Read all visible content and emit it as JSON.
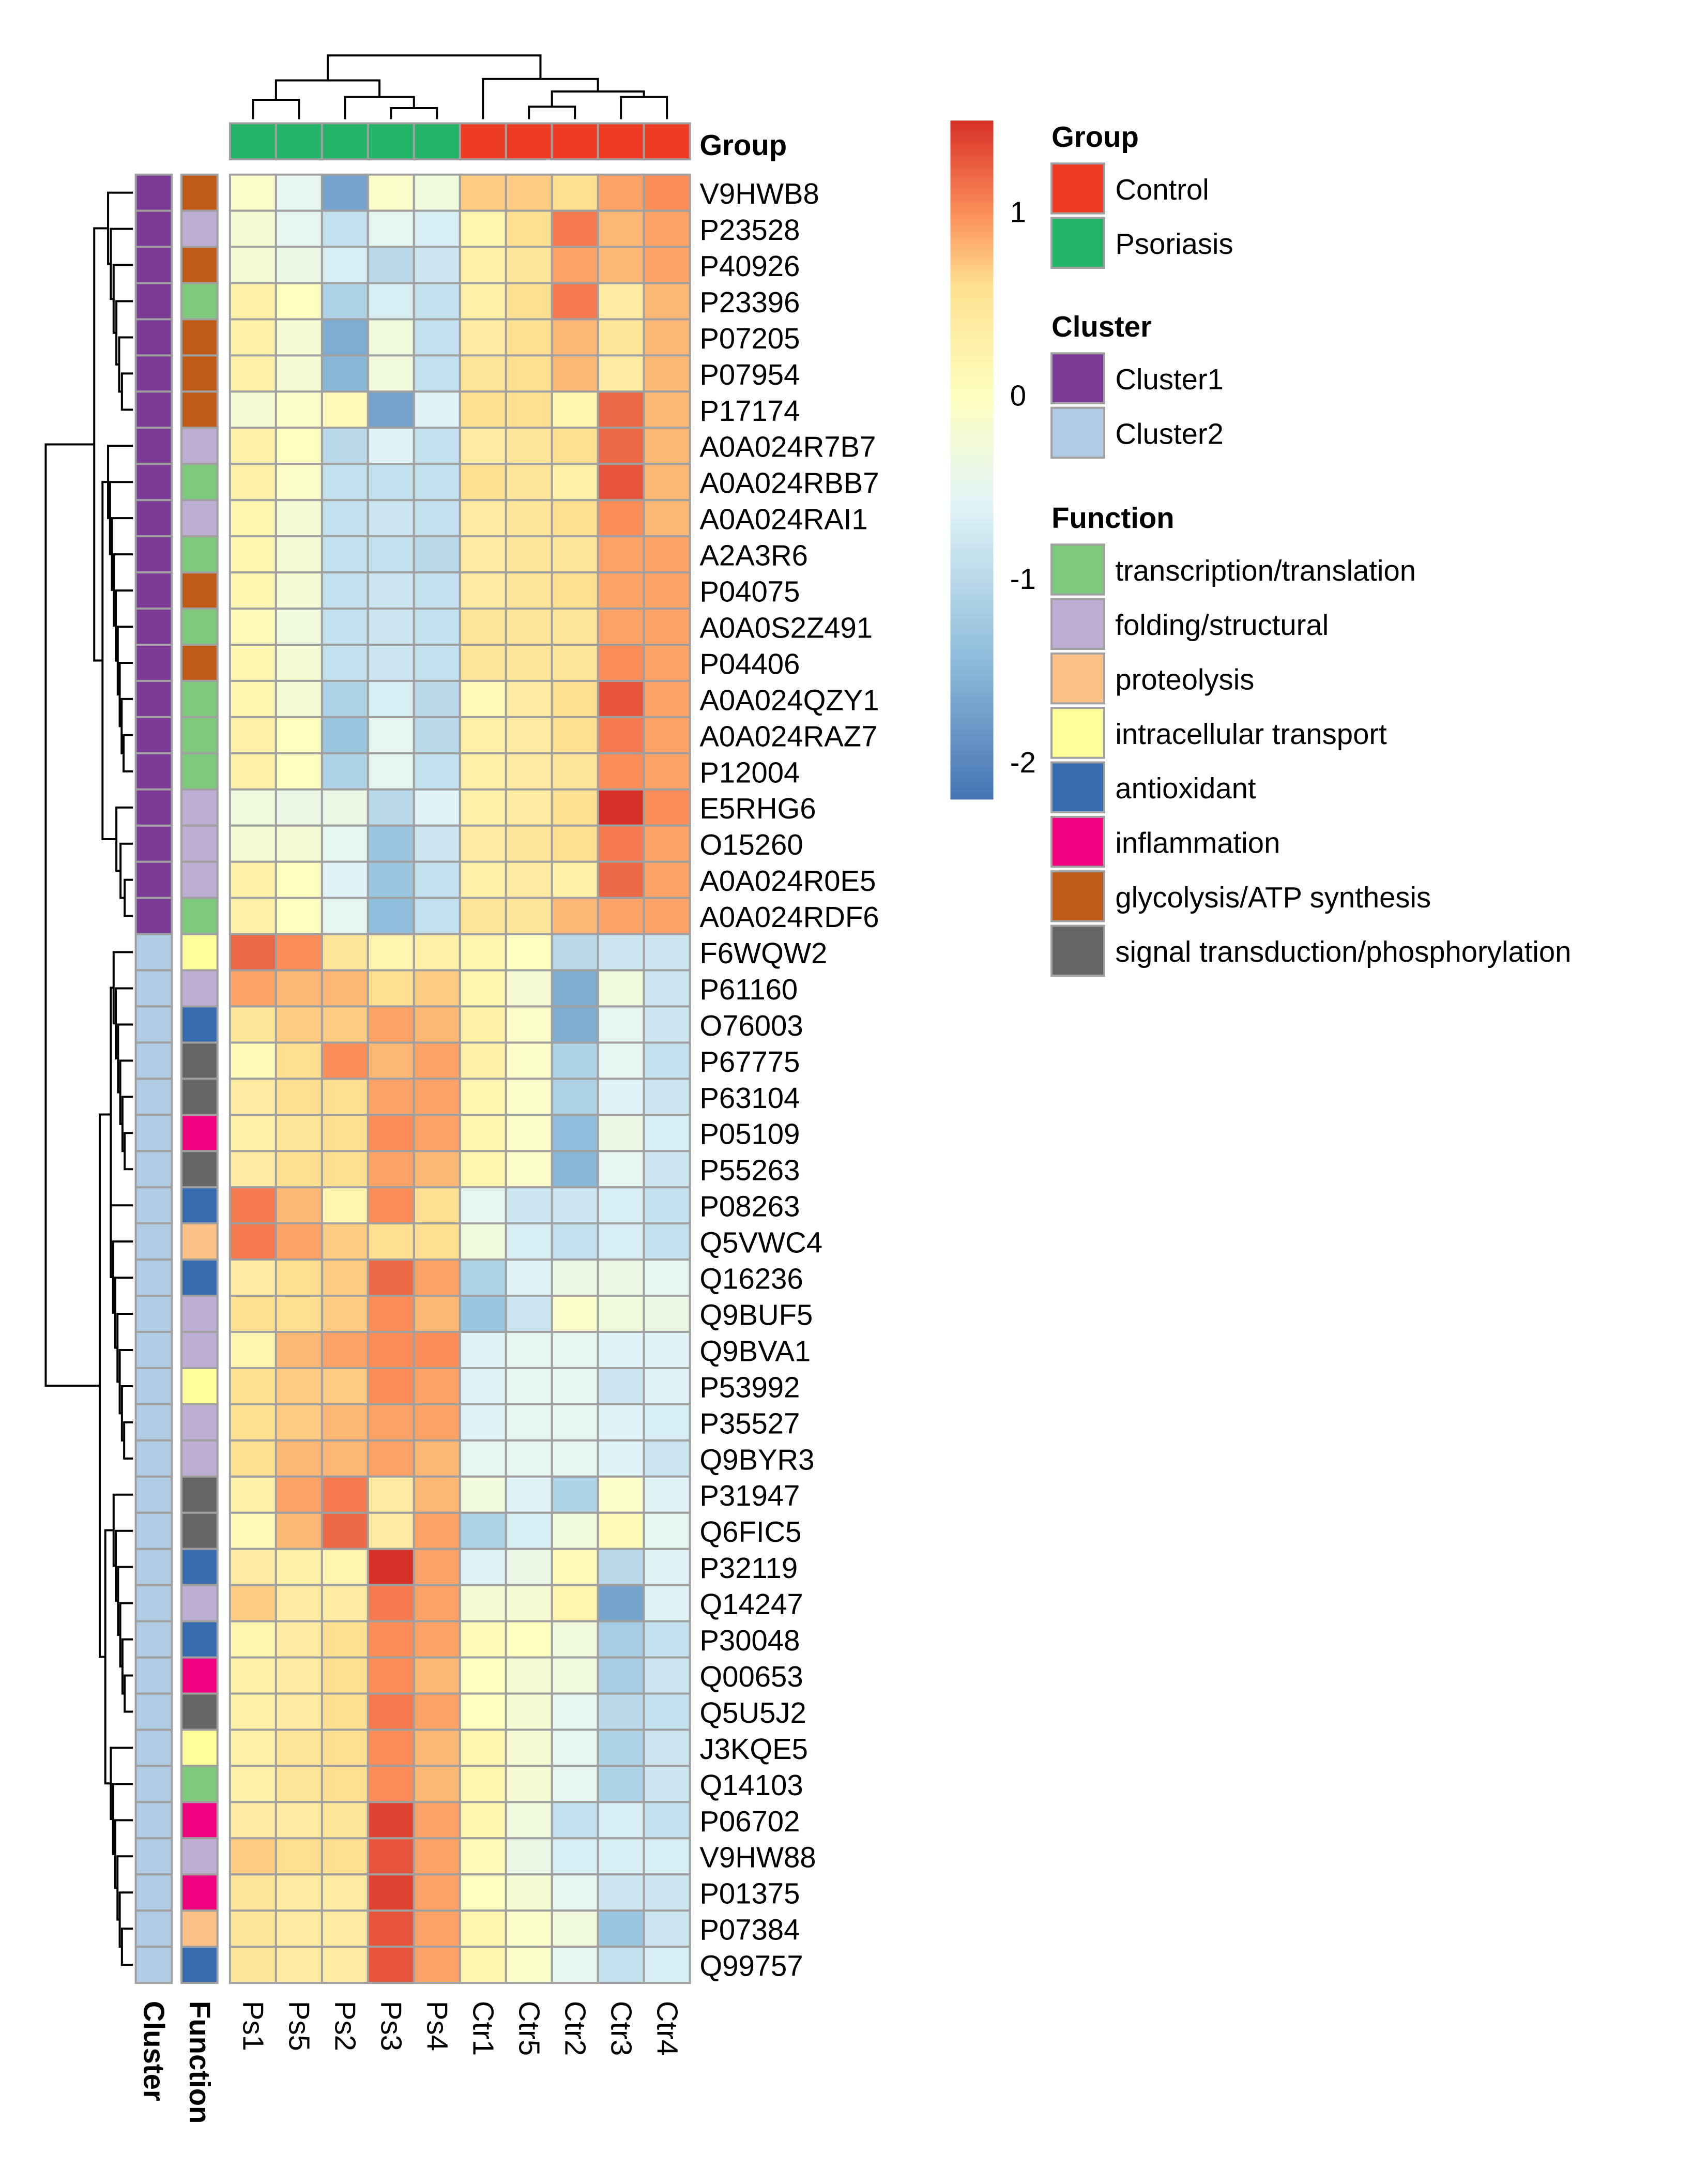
{
  "chart_data": {
    "type": "heatmap",
    "title": "",
    "columns": [
      "Ps1",
      "Ps5",
      "Ps2",
      "Ps3",
      "Ps4",
      "Ctr1",
      "Ctr5",
      "Ctr2",
      "Ctr3",
      "Ctr4"
    ],
    "column_group": [
      "Psoriasis",
      "Psoriasis",
      "Psoriasis",
      "Psoriasis",
      "Psoriasis",
      "Control",
      "Control",
      "Control",
      "Control",
      "Control"
    ],
    "rows": [
      "V9HWB8",
      "P23528",
      "P40926",
      "P23396",
      "P07205",
      "P07954",
      "P17174",
      "A0A024R7B7",
      "A0A024RBB7",
      "A0A024RAI1",
      "A2A3R6",
      "P04075",
      "A0A0S2Z491",
      "P04406",
      "A0A024QZY1",
      "A0A024RAZ7",
      "P12004",
      "E5RHG6",
      "O15260",
      "A0A024R0E5",
      "A0A024RDF6",
      "F6WQW2",
      "P61160",
      "O76003",
      "P67775",
      "P63104",
      "P05109",
      "P55263",
      "P08263",
      "Q5VWC4",
      "Q16236",
      "Q9BUF5",
      "Q9BVA1",
      "P53992",
      "P35527",
      "Q9BYR3",
      "P31947",
      "Q6FIC5",
      "P32119",
      "Q14247",
      "P30048",
      "Q00653",
      "Q5U5J2",
      "J3KQE5",
      "Q14103",
      "P06702",
      "V9HW88",
      "P01375",
      "P07384",
      "Q99757"
    ],
    "row_cluster": [
      "Cluster1",
      "Cluster1",
      "Cluster1",
      "Cluster1",
      "Cluster1",
      "Cluster1",
      "Cluster1",
      "Cluster1",
      "Cluster1",
      "Cluster1",
      "Cluster1",
      "Cluster1",
      "Cluster1",
      "Cluster1",
      "Cluster1",
      "Cluster1",
      "Cluster1",
      "Cluster1",
      "Cluster1",
      "Cluster1",
      "Cluster1",
      "Cluster2",
      "Cluster2",
      "Cluster2",
      "Cluster2",
      "Cluster2",
      "Cluster2",
      "Cluster2",
      "Cluster2",
      "Cluster2",
      "Cluster2",
      "Cluster2",
      "Cluster2",
      "Cluster2",
      "Cluster2",
      "Cluster2",
      "Cluster2",
      "Cluster2",
      "Cluster2",
      "Cluster2",
      "Cluster2",
      "Cluster2",
      "Cluster2",
      "Cluster2",
      "Cluster2",
      "Cluster2",
      "Cluster2",
      "Cluster2",
      "Cluster2",
      "Cluster2"
    ],
    "row_function": [
      "glycolysis/ATP synthesis",
      "folding/structural",
      "glycolysis/ATP synthesis",
      "transcription/translation",
      "glycolysis/ATP synthesis",
      "glycolysis/ATP synthesis",
      "glycolysis/ATP synthesis",
      "folding/structural",
      "transcription/translation",
      "folding/structural",
      "transcription/translation",
      "glycolysis/ATP synthesis",
      "transcription/translation",
      "glycolysis/ATP synthesis",
      "transcription/translation",
      "transcription/translation",
      "transcription/translation",
      "folding/structural",
      "folding/structural",
      "folding/structural",
      "transcription/translation",
      "intracellular transport",
      "folding/structural",
      "antioxidant",
      "signal transduction/phosphorylation",
      "signal transduction/phosphorylation",
      "inflammation",
      "signal transduction/phosphorylation",
      "antioxidant",
      "proteolysis",
      "antioxidant",
      "folding/structural",
      "folding/structural",
      "intracellular transport",
      "folding/structural",
      "folding/structural",
      "signal transduction/phosphorylation",
      "signal transduction/phosphorylation",
      "antioxidant",
      "folding/structural",
      "antioxidant",
      "inflammation",
      "signal transduction/phosphorylation",
      "intracellular transport",
      "transcription/translation",
      "inflammation",
      "folding/structural",
      "inflammation",
      "proteolysis",
      "antioxidant"
    ],
    "values": [
      [
        -0.1,
        -0.5,
        -1.7,
        -0.1,
        -0.3,
        0.7,
        0.7,
        0.6,
        0.9,
        1.0
      ],
      [
        -0.2,
        -0.5,
        -0.9,
        -0.5,
        -0.7,
        0.2,
        0.6,
        1.1,
        0.8,
        0.9
      ],
      [
        -0.2,
        -0.4,
        -0.7,
        -1.0,
        -0.8,
        0.3,
        0.5,
        0.9,
        0.8,
        0.9
      ],
      [
        0.3,
        0.0,
        -1.1,
        -0.7,
        -0.9,
        0.3,
        0.6,
        1.1,
        0.4,
        0.8
      ],
      [
        0.3,
        -0.2,
        -1.6,
        -0.3,
        -0.9,
        0.4,
        0.6,
        0.8,
        0.5,
        0.8
      ],
      [
        0.3,
        -0.2,
        -1.5,
        -0.3,
        -0.9,
        0.5,
        0.6,
        0.8,
        0.4,
        0.8
      ],
      [
        -0.2,
        -0.1,
        0.1,
        -1.7,
        -0.6,
        0.6,
        0.6,
        0.2,
        1.2,
        0.8
      ],
      [
        0.3,
        0.0,
        -1.0,
        -0.6,
        -0.9,
        0.4,
        0.5,
        0.6,
        1.2,
        0.8
      ],
      [
        0.3,
        -0.1,
        -0.9,
        -0.9,
        -0.9,
        0.6,
        0.5,
        0.3,
        1.3,
        0.8
      ],
      [
        0.2,
        -0.2,
        -0.9,
        -0.8,
        -0.9,
        0.4,
        0.5,
        0.6,
        1.0,
        0.8
      ],
      [
        0.2,
        -0.2,
        -0.9,
        -0.9,
        -1.0,
        0.4,
        0.5,
        0.5,
        0.9,
        0.9
      ],
      [
        0.2,
        -0.2,
        -0.9,
        -0.8,
        -0.9,
        0.4,
        0.5,
        0.6,
        0.9,
        0.9
      ],
      [
        0.1,
        -0.3,
        -0.9,
        -0.8,
        -0.9,
        0.5,
        0.5,
        0.5,
        0.9,
        0.9
      ],
      [
        0.2,
        -0.2,
        -0.9,
        -0.8,
        -0.9,
        0.5,
        0.5,
        0.5,
        1.0,
        0.9
      ],
      [
        0.2,
        -0.2,
        -1.1,
        -0.7,
        -1.0,
        0.1,
        0.4,
        0.6,
        1.3,
        0.9
      ],
      [
        0.3,
        0.0,
        -1.3,
        -0.5,
        -1.0,
        0.3,
        0.4,
        0.6,
        1.1,
        0.9
      ],
      [
        0.3,
        0.0,
        -1.1,
        -0.5,
        -0.9,
        0.3,
        0.4,
        0.5,
        1.0,
        0.9
      ],
      [
        -0.3,
        -0.4,
        -0.4,
        -1.0,
        -0.6,
        0.3,
        0.4,
        0.6,
        1.5,
        1.0
      ],
      [
        -0.2,
        -0.2,
        -0.5,
        -1.3,
        -0.8,
        0.4,
        0.5,
        0.6,
        1.1,
        0.9
      ],
      [
        0.3,
        0.0,
        -0.6,
        -1.3,
        -0.9,
        0.3,
        0.4,
        0.3,
        1.2,
        0.9
      ],
      [
        0.3,
        0.0,
        -0.5,
        -1.4,
        -0.9,
        0.5,
        0.5,
        0.8,
        0.9,
        0.9
      ],
      [
        1.2,
        1.0,
        0.5,
        0.2,
        0.3,
        0.2,
        0.0,
        -1.0,
        -0.8,
        -0.8
      ],
      [
        0.9,
        0.8,
        0.8,
        0.6,
        0.7,
        0.2,
        -0.2,
        -1.6,
        -0.3,
        -0.8
      ],
      [
        0.5,
        0.7,
        0.7,
        0.9,
        0.8,
        0.3,
        -0.1,
        -1.6,
        -0.5,
        -0.8
      ],
      [
        0.1,
        0.6,
        1.0,
        0.8,
        0.9,
        0.3,
        -0.1,
        -1.1,
        -0.5,
        -0.9
      ],
      [
        0.4,
        0.6,
        0.6,
        0.9,
        0.9,
        0.2,
        -0.1,
        -1.1,
        -0.6,
        -0.8
      ],
      [
        0.3,
        0.5,
        0.6,
        1.0,
        0.9,
        0.2,
        -0.1,
        -1.4,
        -0.4,
        -0.7
      ],
      [
        0.4,
        0.6,
        0.6,
        0.9,
        0.8,
        0.2,
        -0.1,
        -1.5,
        -0.5,
        -0.8
      ],
      [
        1.1,
        0.8,
        0.2,
        1.0,
        0.6,
        -0.5,
        -0.8,
        -0.8,
        -0.7,
        -0.9
      ],
      [
        1.1,
        0.9,
        0.7,
        0.6,
        0.6,
        -0.3,
        -0.7,
        -0.9,
        -0.7,
        -0.9
      ],
      [
        0.4,
        0.6,
        0.7,
        1.2,
        0.9,
        -1.1,
        -0.6,
        -0.4,
        -0.4,
        -0.5
      ],
      [
        0.6,
        0.6,
        0.7,
        1.0,
        0.8,
        -1.3,
        -0.8,
        -0.1,
        -0.3,
        -0.4
      ],
      [
        0.2,
        0.8,
        0.9,
        1.0,
        1.0,
        -0.6,
        -0.5,
        -0.5,
        -0.6,
        -0.6
      ],
      [
        0.6,
        0.7,
        0.7,
        1.0,
        0.9,
        -0.6,
        -0.5,
        -0.5,
        -0.8,
        -0.6
      ],
      [
        0.6,
        0.7,
        0.8,
        0.9,
        0.9,
        -0.6,
        -0.5,
        -0.5,
        -0.6,
        -0.7
      ],
      [
        0.6,
        0.8,
        0.8,
        0.9,
        0.8,
        -0.5,
        -0.5,
        -0.5,
        -0.6,
        -0.8
      ],
      [
        0.3,
        0.9,
        1.1,
        0.4,
        0.8,
        -0.3,
        -0.6,
        -1.1,
        -0.1,
        -0.6
      ],
      [
        0.1,
        0.8,
        1.2,
        0.4,
        0.9,
        -1.1,
        -0.7,
        -0.3,
        0.1,
        -0.5
      ],
      [
        0.4,
        0.3,
        0.2,
        1.6,
        0.9,
        -0.6,
        -0.4,
        0.1,
        -1.0,
        -0.6
      ],
      [
        0.7,
        0.4,
        0.4,
        1.1,
        0.9,
        -0.2,
        -0.2,
        0.2,
        -1.7,
        -0.6
      ],
      [
        0.2,
        0.4,
        0.6,
        1.0,
        0.9,
        0.1,
        0.0,
        -0.3,
        -1.2,
        -0.9
      ],
      [
        0.3,
        0.4,
        0.6,
        1.0,
        0.8,
        0.0,
        -0.2,
        -0.3,
        -1.2,
        -0.8
      ],
      [
        0.3,
        0.4,
        0.6,
        1.1,
        0.9,
        0.0,
        -0.2,
        -0.5,
        -1.0,
        -0.9
      ],
      [
        0.3,
        0.5,
        0.6,
        1.0,
        0.8,
        0.2,
        -0.2,
        -0.5,
        -1.1,
        -0.8
      ],
      [
        0.3,
        0.5,
        0.6,
        1.0,
        0.8,
        0.2,
        -0.2,
        -0.5,
        -1.1,
        -0.8
      ],
      [
        0.4,
        0.4,
        0.5,
        1.4,
        0.9,
        0.2,
        -0.3,
        -0.9,
        -0.7,
        -0.9
      ],
      [
        0.7,
        0.6,
        0.6,
        1.3,
        0.9,
        0.1,
        -0.4,
        -0.7,
        -0.7,
        -0.7
      ],
      [
        0.5,
        0.4,
        0.4,
        1.4,
        0.9,
        0.0,
        -0.2,
        -0.5,
        -0.8,
        -0.8
      ],
      [
        0.5,
        0.4,
        0.4,
        1.3,
        0.9,
        0.2,
        -0.1,
        -0.3,
        -1.3,
        -0.8
      ],
      [
        0.5,
        0.4,
        0.4,
        1.3,
        0.9,
        0.2,
        -0.1,
        -0.5,
        -0.9,
        -0.7
      ]
    ],
    "color_scale": {
      "min": -2.2,
      "max": 1.5,
      "stops": [
        {
          "value": -2.2,
          "color": "#4575b4"
        },
        {
          "value": -1.4,
          "color": "#91bfdb"
        },
        {
          "value": -0.6,
          "color": "#e0f3f8"
        },
        {
          "value": 0.0,
          "color": "#ffffbf"
        },
        {
          "value": 0.6,
          "color": "#fee090"
        },
        {
          "value": 1.0,
          "color": "#fc8d59"
        },
        {
          "value": 1.5,
          "color": "#d73027"
        }
      ],
      "ticks": [
        1,
        0,
        -1,
        -2
      ]
    },
    "legend": {
      "group": {
        "title": "Group",
        "items": [
          {
            "label": "Control",
            "color": "#ee3b24"
          },
          {
            "label": "Psoriasis",
            "color": "#24b468"
          }
        ]
      },
      "cluster": {
        "title": "Cluster",
        "items": [
          {
            "label": "Cluster1",
            "color": "#7a3a96"
          },
          {
            "label": "Cluster2",
            "color": "#b0cce4"
          }
        ]
      },
      "function": {
        "title": "Function",
        "items": [
          {
            "label": "transcription/translation",
            "color": "#7fc97f"
          },
          {
            "label": "folding/structural",
            "color": "#beaed4"
          },
          {
            "label": "proteolysis",
            "color": "#fdc086"
          },
          {
            "label": "intracellular transport",
            "color": "#ffff99"
          },
          {
            "label": "antioxidant",
            "color": "#386cb0"
          },
          {
            "label": "inflammation",
            "color": "#f0027f"
          },
          {
            "label": "glycolysis/ATP synthesis",
            "color": "#bf5b17"
          },
          {
            "label": "signal transduction/phosphorylation",
            "color": "#666666"
          }
        ]
      }
    },
    "annotation_labels": {
      "column_annotation": "Group",
      "row_annotations": [
        "Cluster",
        "Function"
      ]
    }
  }
}
